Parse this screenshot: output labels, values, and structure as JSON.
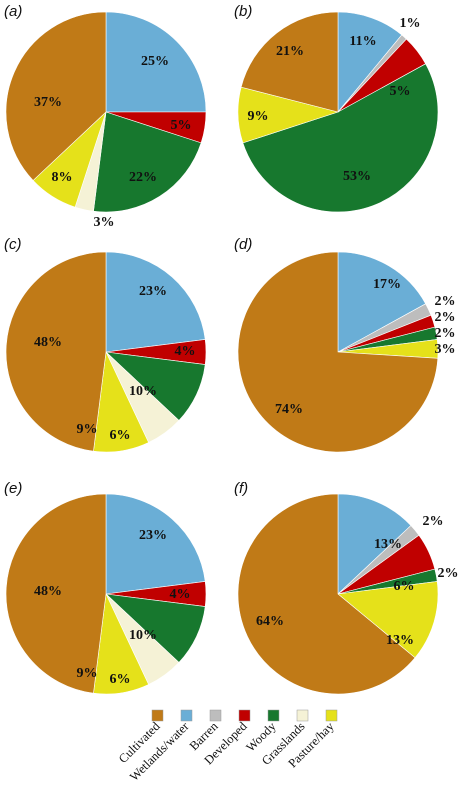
{
  "chart_data": [
    {
      "type": "pie",
      "panel_label": "(a)",
      "slices": [
        {
          "category": "Wetlands/water",
          "value": 25,
          "label": "25%"
        },
        {
          "category": "Developed",
          "value": 5,
          "label": "5%"
        },
        {
          "category": "Woody",
          "value": 22,
          "label": "22%"
        },
        {
          "category": "Grasslands",
          "value": 3,
          "label": "3%"
        },
        {
          "category": "Pasture/hay",
          "value": 8,
          "label": "8%"
        },
        {
          "category": "Cultivated",
          "value": 37,
          "label": "37%"
        }
      ]
    },
    {
      "type": "pie",
      "panel_label": "(b)",
      "slices": [
        {
          "category": "Wetlands/water",
          "value": 11,
          "label": "11%"
        },
        {
          "category": "Barren",
          "value": 1,
          "label": "1%"
        },
        {
          "category": "Developed",
          "value": 5,
          "label": "5%"
        },
        {
          "category": "Woody",
          "value": 53,
          "label": "53%"
        },
        {
          "category": "Pasture/hay",
          "value": 9,
          "label": "9%"
        },
        {
          "category": "Cultivated",
          "value": 21,
          "label": "21%"
        }
      ]
    },
    {
      "type": "pie",
      "panel_label": "(c)",
      "slices": [
        {
          "category": "Wetlands/water",
          "value": 23,
          "label": "23%"
        },
        {
          "category": "Developed",
          "value": 4,
          "label": "4%"
        },
        {
          "category": "Woody",
          "value": 10,
          "label": "10%"
        },
        {
          "category": "Grasslands",
          "value": 6,
          "label": "6%"
        },
        {
          "category": "Pasture/hay",
          "value": 9,
          "label": "9%"
        },
        {
          "category": "Cultivated",
          "value": 48,
          "label": "48%"
        }
      ]
    },
    {
      "type": "pie",
      "panel_label": "(d)",
      "slices": [
        {
          "category": "Wetlands/water",
          "value": 17,
          "label": "17%"
        },
        {
          "category": "Barren",
          "value": 2,
          "label": "2%"
        },
        {
          "category": "Developed",
          "value": 2,
          "label": "2%"
        },
        {
          "category": "Woody",
          "value": 2,
          "label": "2%"
        },
        {
          "category": "Pasture/hay",
          "value": 3,
          "label": "3%"
        },
        {
          "category": "Cultivated",
          "value": 74,
          "label": "74%"
        }
      ]
    },
    {
      "type": "pie",
      "panel_label": "(e)",
      "slices": [
        {
          "category": "Wetlands/water",
          "value": 23,
          "label": "23%"
        },
        {
          "category": "Developed",
          "value": 4,
          "label": "4%"
        },
        {
          "category": "Woody",
          "value": 10,
          "label": "10%"
        },
        {
          "category": "Grasslands",
          "value": 6,
          "label": "6%"
        },
        {
          "category": "Pasture/hay",
          "value": 9,
          "label": "9%"
        },
        {
          "category": "Cultivated",
          "value": 48,
          "label": "48%"
        }
      ]
    },
    {
      "type": "pie",
      "panel_label": "(f)",
      "slices": [
        {
          "category": "Wetlands/water",
          "value": 13,
          "label": "13%"
        },
        {
          "category": "Barren",
          "value": 2,
          "label": "2%"
        },
        {
          "category": "Developed",
          "value": 6,
          "label": "6%"
        },
        {
          "category": "Woody",
          "value": 2,
          "label": "2%"
        },
        {
          "category": "Pasture/hay",
          "value": 13,
          "label": "13%"
        },
        {
          "category": "Cultivated",
          "value": 64,
          "label": "64%"
        }
      ]
    }
  ],
  "legend": {
    "placement": "bottom",
    "items": [
      {
        "name": "Cultivated",
        "color": "#C07A17"
      },
      {
        "name": "Wetlands/water",
        "color": "#6AAED6"
      },
      {
        "name": "Barren",
        "color": "#BDBDBD"
      },
      {
        "name": "Developed",
        "color": "#C00000"
      },
      {
        "name": "Woody",
        "color": "#17782E"
      },
      {
        "name": "Grasslands",
        "color": "#F5F2D6"
      },
      {
        "name": "Pasture/hay",
        "color": "#E5E11A"
      }
    ]
  }
}
